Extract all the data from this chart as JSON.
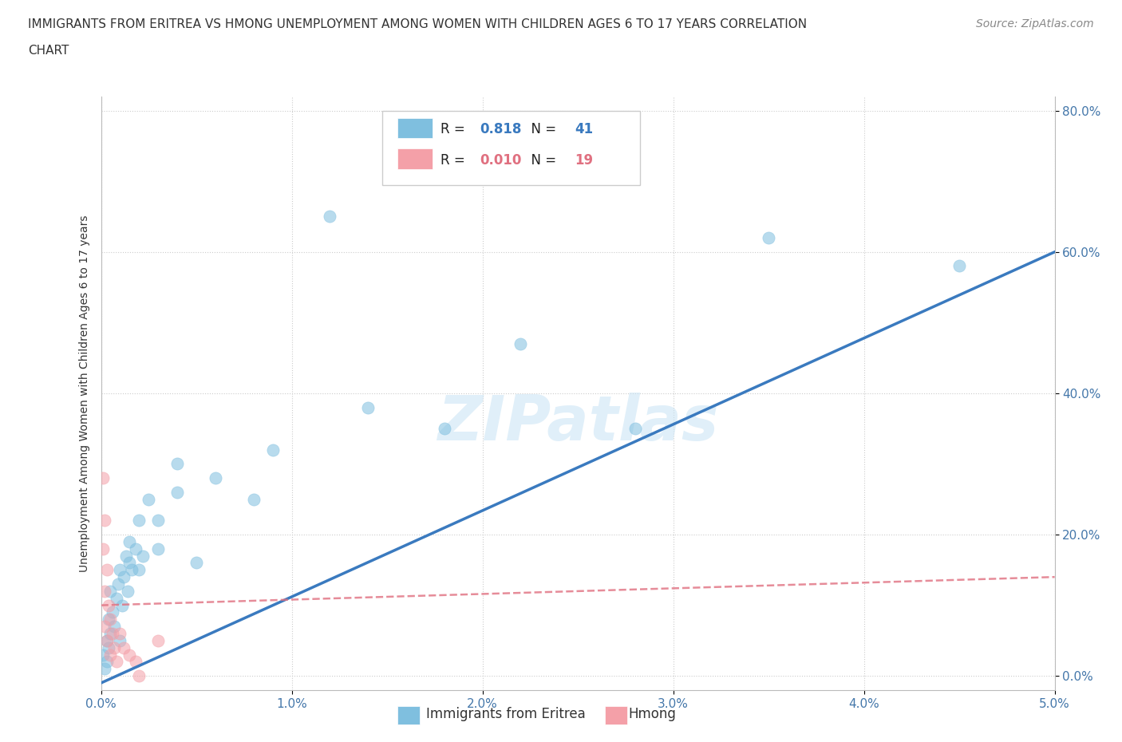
{
  "title_line1": "IMMIGRANTS FROM ERITREA VS HMONG UNEMPLOYMENT AMONG WOMEN WITH CHILDREN AGES 6 TO 17 YEARS CORRELATION",
  "title_line2": "CHART",
  "source": "Source: ZipAtlas.com",
  "ylabel": "Unemployment Among Women with Children Ages 6 to 17 years",
  "xmin": 0.0,
  "xmax": 0.05,
  "ymin": -0.02,
  "ymax": 0.82,
  "yticks": [
    0.0,
    0.2,
    0.4,
    0.6,
    0.8
  ],
  "ytick_labels": [
    "0.0%",
    "20.0%",
    "40.0%",
    "60.0%",
    "80.0%"
  ],
  "xticks": [
    0.0,
    0.01,
    0.02,
    0.03,
    0.04,
    0.05
  ],
  "xtick_labels": [
    "0.0%",
    "1.0%",
    "2.0%",
    "3.0%",
    "4.0%",
    "5.0%"
  ],
  "eritrea_color": "#7fbfdf",
  "hmong_color": "#f4a0a8",
  "eritrea_line_color": "#3a7abf",
  "hmong_line_color": "#e07080",
  "R_eritrea": 0.818,
  "N_eritrea": 41,
  "R_hmong": 0.01,
  "N_hmong": 19,
  "watermark": "ZIPatlas",
  "background_color": "#ffffff",
  "grid_color": "#cccccc",
  "eritrea_x": [
    0.0001,
    0.0002,
    0.0003,
    0.0003,
    0.0004,
    0.0004,
    0.0005,
    0.0005,
    0.0006,
    0.0007,
    0.0008,
    0.0009,
    0.001,
    0.001,
    0.0011,
    0.0012,
    0.0013,
    0.0014,
    0.0015,
    0.0015,
    0.0016,
    0.0018,
    0.002,
    0.002,
    0.0022,
    0.0025,
    0.003,
    0.003,
    0.004,
    0.004,
    0.005,
    0.006,
    0.008,
    0.009,
    0.012,
    0.014,
    0.018,
    0.022,
    0.028,
    0.035,
    0.045
  ],
  "eritrea_y": [
    0.03,
    0.01,
    0.05,
    0.02,
    0.04,
    0.08,
    0.06,
    0.12,
    0.09,
    0.07,
    0.11,
    0.13,
    0.05,
    0.15,
    0.1,
    0.14,
    0.17,
    0.12,
    0.16,
    0.19,
    0.15,
    0.18,
    0.15,
    0.22,
    0.17,
    0.25,
    0.18,
    0.22,
    0.26,
    0.3,
    0.16,
    0.28,
    0.25,
    0.32,
    0.65,
    0.38,
    0.35,
    0.47,
    0.35,
    0.62,
    0.58
  ],
  "hmong_x": [
    0.0001,
    0.0001,
    0.0002,
    0.0002,
    0.0002,
    0.0003,
    0.0003,
    0.0004,
    0.0005,
    0.0005,
    0.0006,
    0.0007,
    0.0008,
    0.001,
    0.0012,
    0.0015,
    0.0018,
    0.002,
    0.003
  ],
  "hmong_y": [
    0.28,
    0.18,
    0.22,
    0.12,
    0.07,
    0.15,
    0.05,
    0.1,
    0.08,
    0.03,
    0.06,
    0.04,
    0.02,
    0.06,
    0.04,
    0.03,
    0.02,
    0.0,
    0.05
  ],
  "eritrea_trend_x": [
    0.0,
    0.05
  ],
  "eritrea_trend_y": [
    -0.01,
    0.6
  ],
  "hmong_trend_x": [
    0.0,
    0.05
  ],
  "hmong_trend_y": [
    0.1,
    0.14
  ]
}
